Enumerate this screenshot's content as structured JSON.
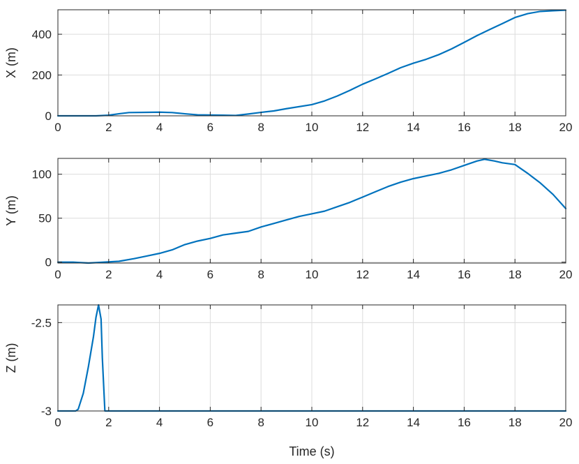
{
  "chart_data": [
    {
      "type": "line",
      "xlabel": "",
      "ylabel": "X (m)",
      "xlim": [
        0,
        20
      ],
      "ylim": [
        0,
        520
      ],
      "xticks": [
        0,
        2,
        4,
        6,
        8,
        10,
        12,
        14,
        16,
        18,
        20
      ],
      "yticks": [
        0,
        200,
        400
      ],
      "grid": true,
      "color": "#0072BD",
      "series": [
        {
          "x": [
            0,
            1,
            1.5,
            2,
            2.4,
            2.8,
            3.5,
            4,
            4.5,
            5,
            5.5,
            6,
            6.5,
            7,
            7.5,
            8,
            8.5,
            9,
            10,
            10.5,
            11,
            11.5,
            12,
            12.5,
            13,
            13.5,
            14,
            14.5,
            15,
            15.5,
            16,
            16.5,
            17,
            17.5,
            18,
            18.5,
            19,
            19.5,
            20
          ],
          "y": [
            0,
            0,
            0,
            3,
            10,
            16,
            17,
            18,
            16,
            10,
            5,
            4,
            3,
            2,
            9,
            17,
            24,
            35,
            55,
            73,
            97,
            125,
            155,
            181,
            208,
            236,
            258,
            277,
            300,
            328,
            360,
            393,
            423,
            452,
            482,
            501,
            512,
            515,
            518
          ]
        }
      ]
    },
    {
      "type": "line",
      "xlabel": "",
      "ylabel": "Y (m)",
      "xlim": [
        0,
        20
      ],
      "ylim": [
        -1,
        118
      ],
      "xticks": [
        0,
        2,
        4,
        6,
        8,
        10,
        12,
        14,
        16,
        18,
        20
      ],
      "yticks": [
        0,
        50,
        100
      ],
      "grid": true,
      "color": "#0072BD",
      "series": [
        {
          "x": [
            0,
            0.6,
            1.2,
            1.8,
            2.4,
            3,
            3.5,
            4,
            4.5,
            5,
            5.5,
            6,
            6.5,
            7,
            7.5,
            8,
            8.5,
            9,
            9.5,
            10,
            10.5,
            11,
            11.5,
            12,
            12.5,
            13,
            13.5,
            14,
            14.5,
            15,
            15.5,
            16,
            16.5,
            16.8,
            17.2,
            17.5,
            18,
            18.5,
            19,
            19.5,
            20
          ],
          "y": [
            0,
            0,
            -1,
            0,
            1,
            4,
            7,
            10,
            14,
            20,
            24,
            27,
            31,
            33,
            35,
            40,
            44,
            48,
            52,
            55,
            58,
            63,
            68,
            74,
            80,
            86,
            91,
            95,
            98,
            101,
            105,
            110,
            115,
            117,
            115,
            113,
            111,
            101,
            90,
            77,
            61
          ]
        }
      ]
    },
    {
      "type": "line",
      "xlabel": "Time (s)",
      "ylabel": "Z (m)",
      "xlim": [
        0,
        20
      ],
      "ylim": [
        -3,
        -2.4
      ],
      "xticks": [
        0,
        2,
        4,
        6,
        8,
        10,
        12,
        14,
        16,
        18,
        20
      ],
      "yticks": [
        -3,
        -2.5
      ],
      "grid": true,
      "color": "#0072BD",
      "series": [
        {
          "x": [
            0,
            0.7,
            0.8,
            1.0,
            1.2,
            1.4,
            1.5,
            1.6,
            1.7,
            1.75,
            1.85,
            1.9,
            20
          ],
          "y": [
            -3,
            -3,
            -2.99,
            -2.9,
            -2.75,
            -2.58,
            -2.47,
            -2.4,
            -2.48,
            -2.7,
            -3,
            -3,
            -3
          ]
        }
      ]
    }
  ]
}
